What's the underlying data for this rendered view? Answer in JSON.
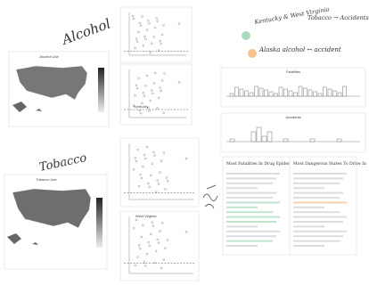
{
  "annotations": {
    "alcohol": "Alcohol",
    "tobacco": "Tobacco",
    "note_1": "Kentucky & West Virginia",
    "note_2": "Tobacco → Accidents",
    "note_3": "Alaska alcohol ↔ accident"
  },
  "maps": [
    {
      "title": "Alcohol Use"
    },
    {
      "title": "Tobacco Use"
    }
  ],
  "histograms": [
    {
      "title": "Fatalities"
    },
    {
      "title": "Accidents"
    }
  ],
  "documents": [
    {
      "title": "Most Fatalities In Drug Epidemic"
    },
    {
      "title": "Most Dangerous States To Drive In"
    }
  ],
  "scatter_labels": [
    "Kentucky",
    "West Virginia"
  ]
}
